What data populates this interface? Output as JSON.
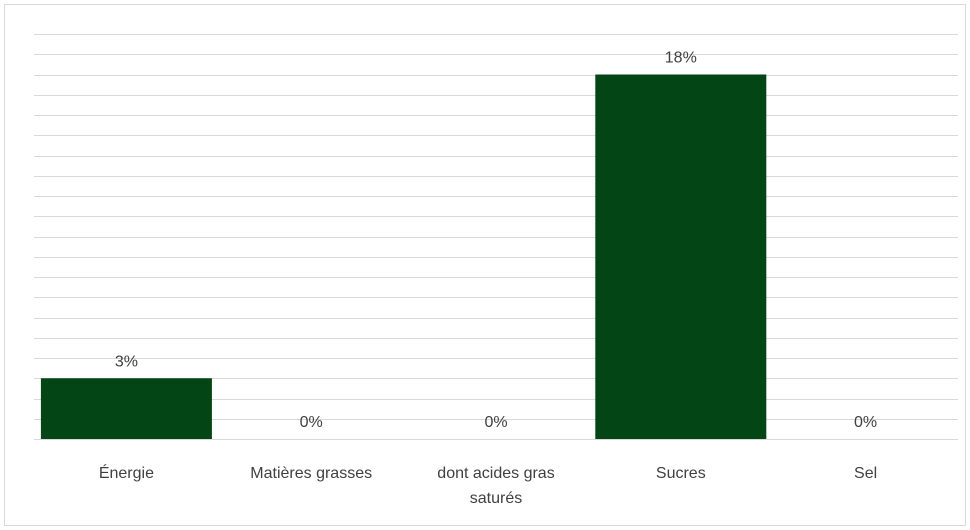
{
  "chart_data": {
    "type": "bar",
    "title": "",
    "xlabel": "",
    "ylabel": "",
    "categories": [
      "Énergie",
      "Matières grasses",
      "dont acides gras saturés",
      "Sucres",
      "Sel"
    ],
    "category_lines": [
      [
        "Énergie"
      ],
      [
        "Matières grasses"
      ],
      [
        "dont acides gras",
        "saturés"
      ],
      [
        "Sucres"
      ],
      [
        "Sel"
      ]
    ],
    "values": [
      3,
      0,
      0,
      18,
      0
    ],
    "data_labels": [
      "3%",
      "0%",
      "0%",
      "18%",
      "0%"
    ],
    "ylim": [
      0,
      20
    ],
    "grid_step": 1,
    "grid": true,
    "legend": "none",
    "bar_color": "#034514",
    "grid_color": "#d9d9d9",
    "text_color": "#404040"
  }
}
